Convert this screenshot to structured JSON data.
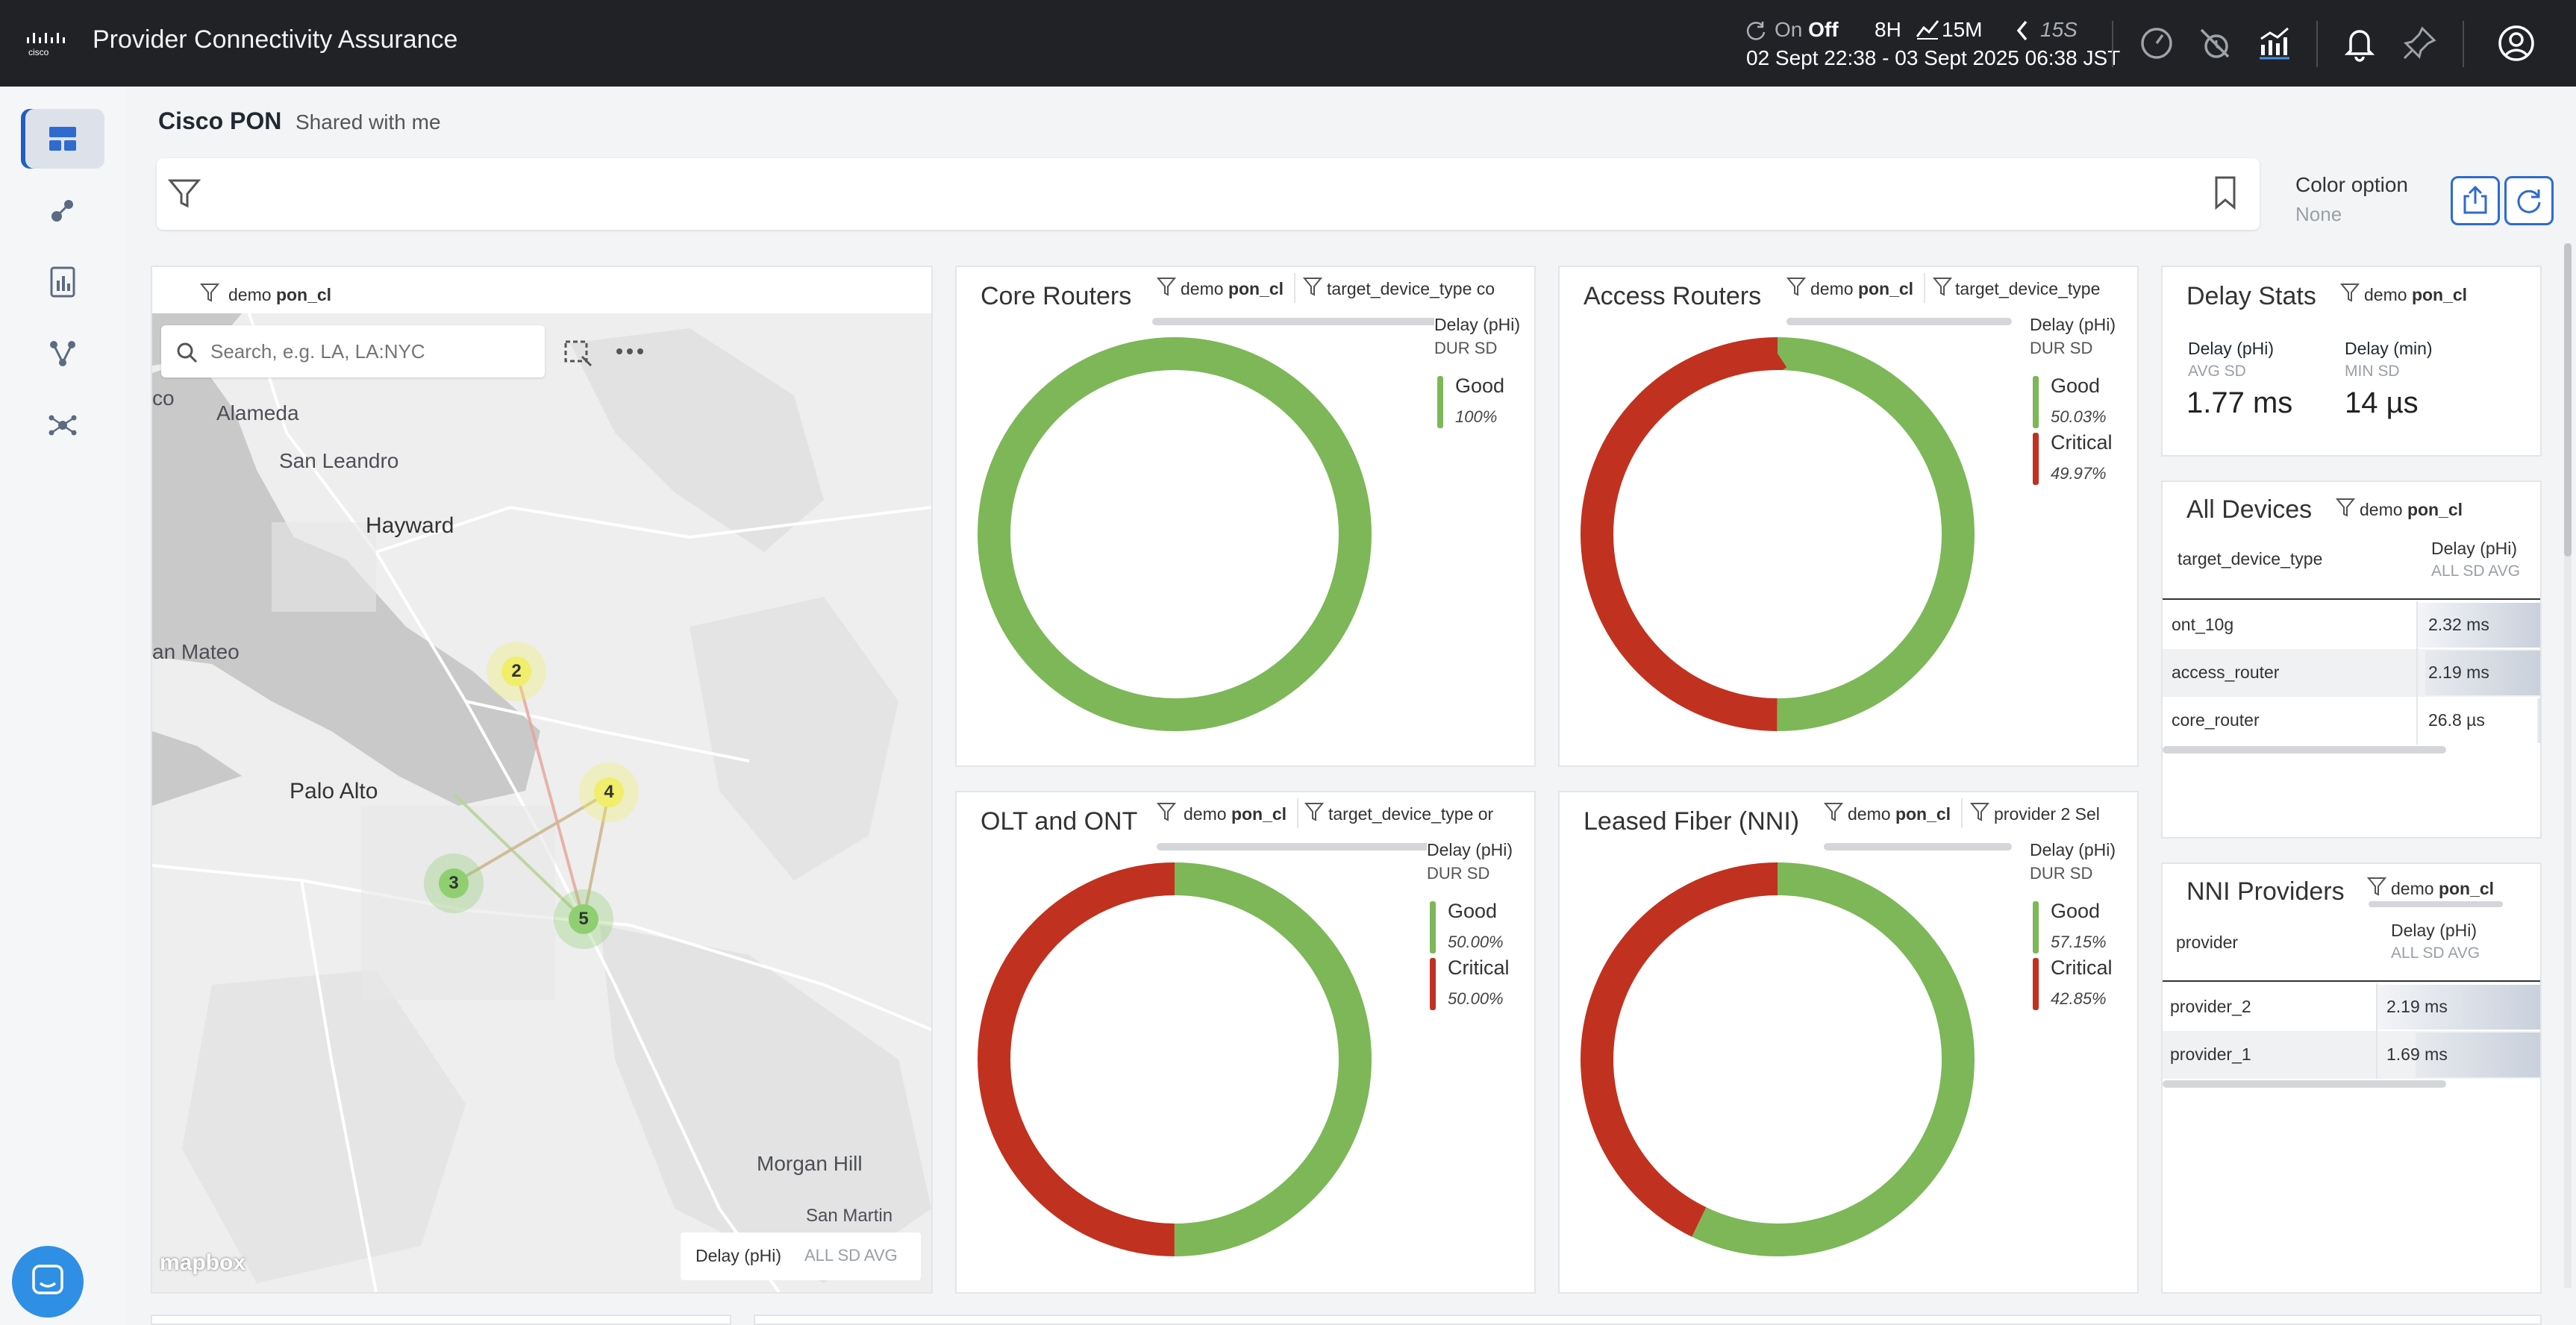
{
  "app": {
    "title": "Provider Connectivity Assurance"
  },
  "topbar": {
    "live_on": "On",
    "live_off": "Off",
    "range_8h": "8H",
    "range_15m": "15M",
    "refresh": "15S",
    "daterange": "02 Sept 22:38 - 03 Sept 2025 06:38 JST"
  },
  "page": {
    "title": "Cisco PON",
    "subtitle": "Shared with me"
  },
  "color_option": {
    "label": "Color option",
    "value": "None"
  },
  "map": {
    "chip_key": "demo",
    "chip_val": "pon_cl",
    "search_placeholder": "Search, e.g. LA, LA:NYC",
    "places": [
      "co",
      "Alameda",
      "San Leandro",
      "Hayward",
      "an Mateo",
      "Palo Alto",
      "Morgan Hill",
      "San Martin"
    ],
    "clusters": [
      {
        "label": "2",
        "color": "#f0ee6b"
      },
      {
        "label": "4",
        "color": "#f0ee6b"
      },
      {
        "label": "3",
        "color": "#8fcf72"
      },
      {
        "label": "5",
        "color": "#8fcf72"
      }
    ],
    "legend_metric": "Delay (pHi)",
    "legend_mods": "ALL SD AVG",
    "brand": "mapbox"
  },
  "donuts": [
    {
      "title": "Core Routers",
      "chip1_key": "demo",
      "chip1_val": "pon_cl",
      "chip2": "target_device_type co",
      "legend_title": "Delay (pHi)",
      "legend_sub": "DUR SD",
      "items": [
        {
          "name": "Good",
          "pct": "100%",
          "color": "#7db758",
          "fraction": 1.0
        }
      ]
    },
    {
      "title": "Access Routers",
      "chip1_key": "demo",
      "chip1_val": "pon_cl",
      "chip2": "target_device_type",
      "legend_title": "Delay (pHi)",
      "legend_sub": "DUR SD",
      "items": [
        {
          "name": "Good",
          "pct": "50.03%",
          "color": "#7db758",
          "fraction": 0.5003
        },
        {
          "name": "Critical",
          "pct": "49.97%",
          "color": "#c0321f",
          "fraction": 0.4997
        }
      ]
    },
    {
      "title": "OLT and ONT",
      "chip1_key": "demo",
      "chip1_val": "pon_cl",
      "chip2": "target_device_type or",
      "legend_title": "Delay (pHi)",
      "legend_sub": "DUR SD",
      "items": [
        {
          "name": "Good",
          "pct": "50.00%",
          "color": "#7db758",
          "fraction": 0.5
        },
        {
          "name": "Critical",
          "pct": "50.00%",
          "color": "#c0321f",
          "fraction": 0.5
        }
      ]
    },
    {
      "title": "Leased Fiber (NNI)",
      "chip1_key": "demo",
      "chip1_val": "pon_cl",
      "chip2": "provider 2 Sel",
      "legend_title": "Delay (pHi)",
      "legend_sub": "DUR SD",
      "items": [
        {
          "name": "Good",
          "pct": "57.15%",
          "color": "#7db758",
          "fraction": 0.5715
        },
        {
          "name": "Critical",
          "pct": "42.85%",
          "color": "#c0321f",
          "fraction": 0.4285
        }
      ]
    }
  ],
  "delay_stats": {
    "title": "Delay Stats",
    "chip_key": "demo",
    "chip_val": "pon_cl",
    "m1_label": "Delay (pHi)",
    "m1_sub": "AVG  SD",
    "m1_value": "1.77 ms",
    "m2_label": "Delay (min)",
    "m2_sub": "MIN  SD",
    "m2_value": "14 µs"
  },
  "all_devices": {
    "title": "All Devices",
    "chip_key": "demo",
    "chip_val": "pon_cl",
    "col1": "target_device_type",
    "col2": "Delay (pHi)",
    "col2_sub": "ALL SD AVG",
    "rows": [
      {
        "name": "ont_10g",
        "value": "2.32 ms",
        "fraction": 1.0
      },
      {
        "name": "access_router",
        "value": "2.19 ms",
        "fraction": 0.94
      },
      {
        "name": "core_router",
        "value": "26.8 µs",
        "fraction": 0.012
      }
    ]
  },
  "nni_providers": {
    "title": "NNI Providers",
    "chip_key": "demo",
    "chip_val": "pon_cl",
    "col1": "provider",
    "col2": "Delay (pHi)",
    "col2_sub": "ALL SD AVG",
    "rows": [
      {
        "name": "provider_2",
        "value": "2.19 ms",
        "fraction": 1.0
      },
      {
        "name": "provider_1",
        "value": "1.69 ms",
        "fraction": 0.77
      }
    ]
  },
  "colors": {
    "good": "#7db758",
    "critical": "#c0321f",
    "accent": "#2f6bcf",
    "topbar": "#202225"
  }
}
